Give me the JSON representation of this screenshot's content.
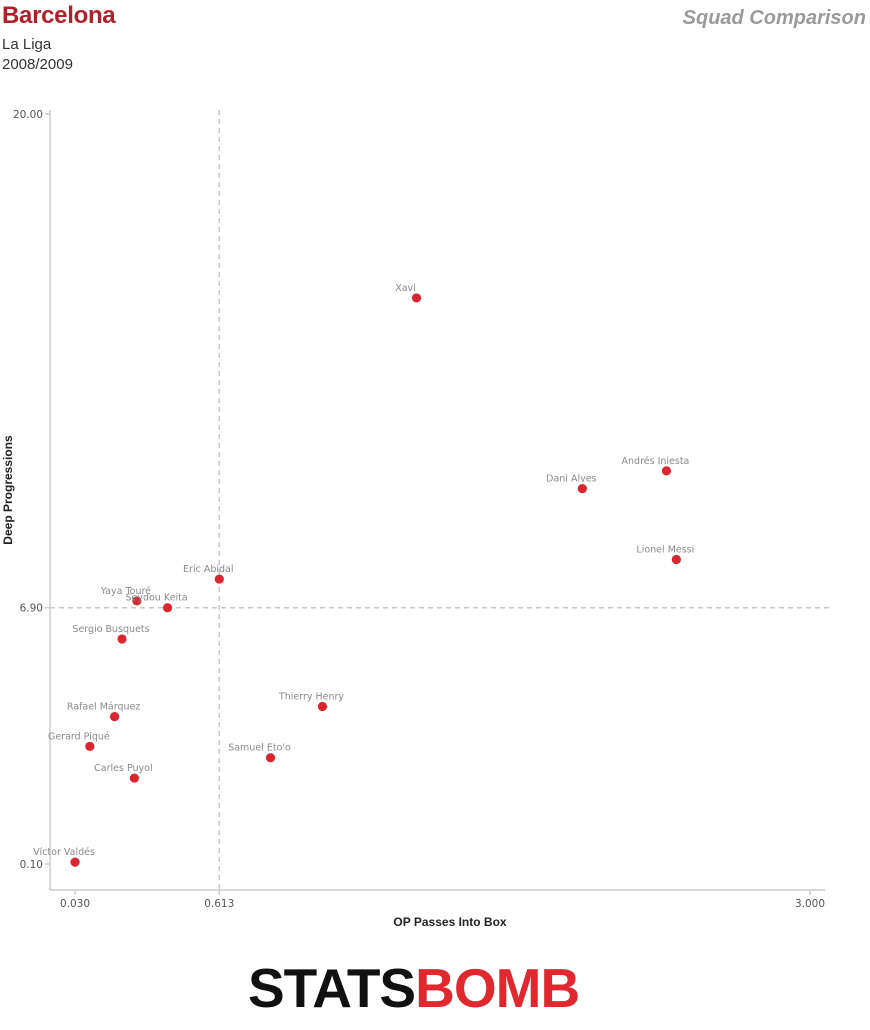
{
  "header": {
    "team": "Barcelona",
    "league": "La Liga",
    "season": "2008/2009",
    "view_title": "Squad Comparison"
  },
  "logo": {
    "part1": "STATS",
    "part2": "BOMB"
  },
  "colors": {
    "accent": "#b0202a",
    "dot": "#d92630",
    "label": "#8a8a8a",
    "axis": "#cccccc",
    "grid": "#c8c8c8"
  },
  "chart_data": {
    "type": "scatter",
    "xlabel": "OP Passes Into Box",
    "ylabel": "Deep Progressions",
    "xlim": [
      0.03,
      3.0
    ],
    "ylim": [
      0.1,
      20.0
    ],
    "x_ticks": [
      "0.030",
      "0.613",
      "3.000"
    ],
    "y_ticks": [
      "0.10",
      "6.90",
      "20.00"
    ],
    "reference_lines": {
      "x": 0.613,
      "y": 6.9
    },
    "points": [
      {
        "name": "Xavi",
        "x": 1.41,
        "y": 15.12
      },
      {
        "name": "Andrés Iniesta",
        "x": 2.42,
        "y": 10.53
      },
      {
        "name": "Dani Alves",
        "x": 2.08,
        "y": 10.06
      },
      {
        "name": "Lionel Messi",
        "x": 2.46,
        "y": 8.18
      },
      {
        "name": "Eric Abidal",
        "x": 0.613,
        "y": 7.66
      },
      {
        "name": "Yaya Touré",
        "x": 0.28,
        "y": 7.08
      },
      {
        "name": "Seydou Keita",
        "x": 0.404,
        "y": 6.9
      },
      {
        "name": "Sergio Busquets",
        "x": 0.22,
        "y": 6.07
      },
      {
        "name": "Thierry Henry",
        "x": 1.03,
        "y": 4.28
      },
      {
        "name": "Rafael Márquez",
        "x": 0.19,
        "y": 4.01
      },
      {
        "name": "Samuel Eto'o",
        "x": 0.82,
        "y": 2.92
      },
      {
        "name": "Gerard Piqué",
        "x": 0.09,
        "y": 3.22
      },
      {
        "name": "Carles Puyol",
        "x": 0.27,
        "y": 2.38
      },
      {
        "name": "Víctor Valdés",
        "x": 0.03,
        "y": 0.15
      }
    ]
  }
}
